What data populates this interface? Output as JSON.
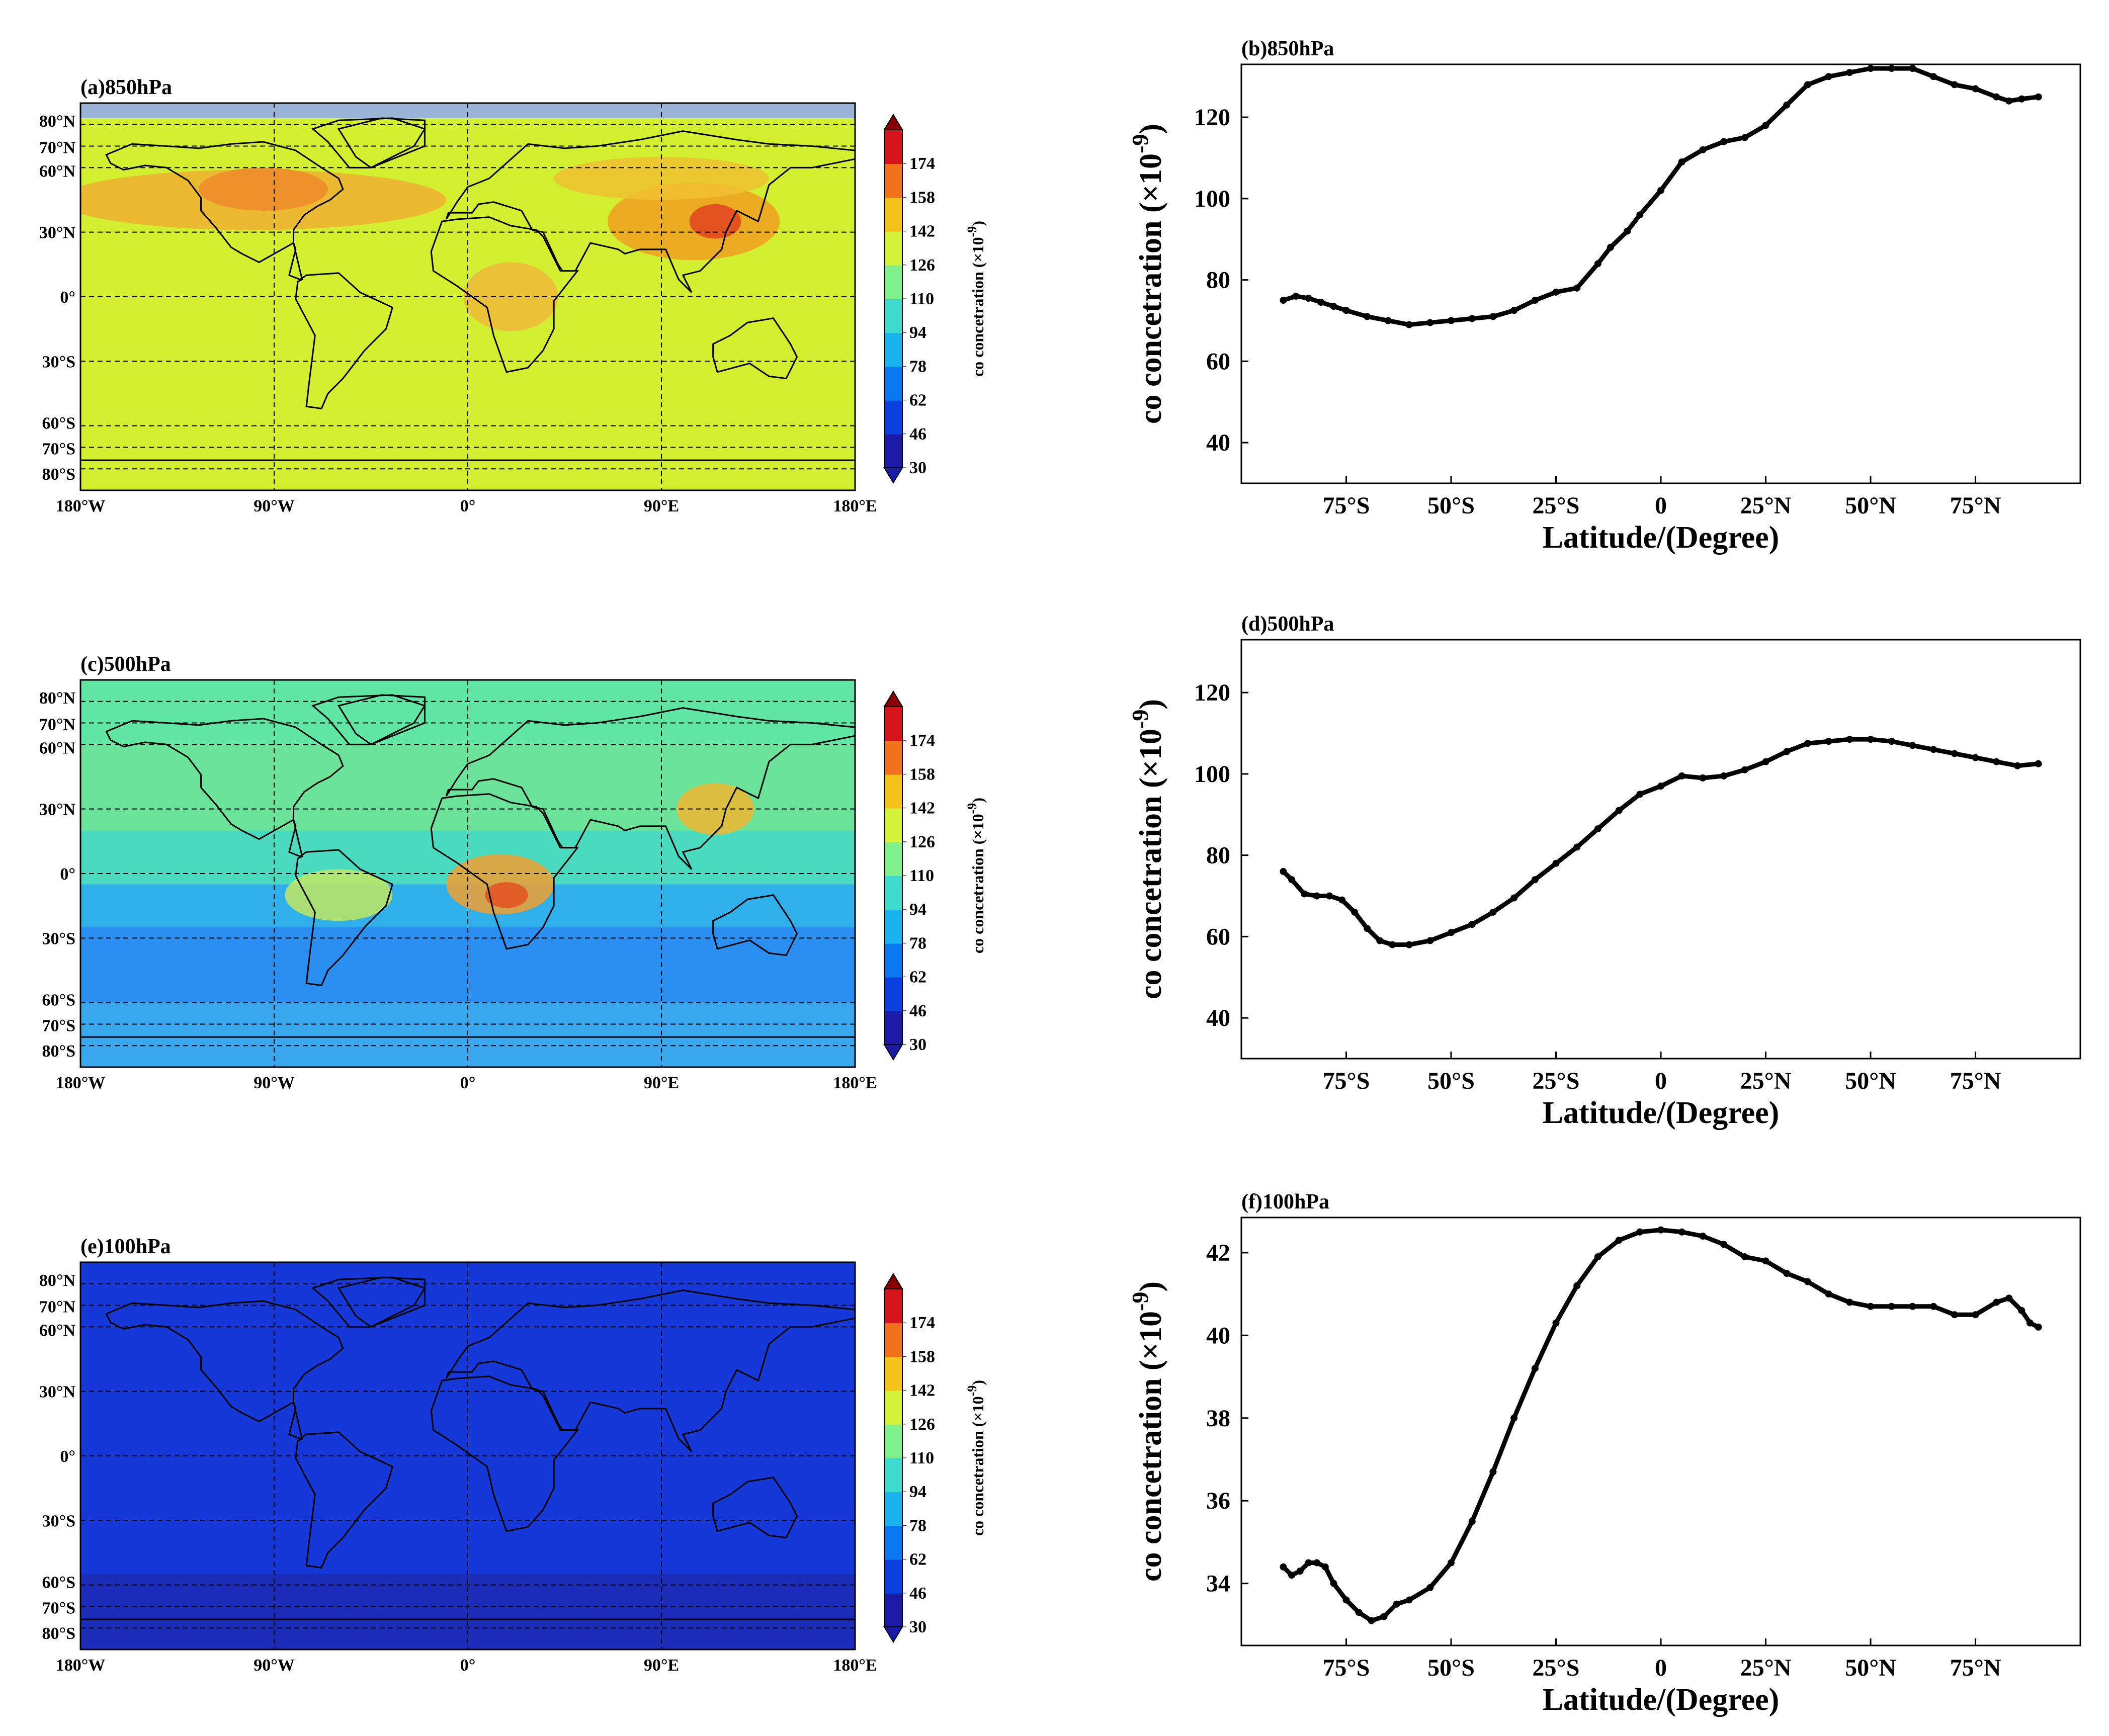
{
  "figure": {
    "colorbar_label": "co concetration (×10",
    "colorbar_exponent": "-9",
    "colorbar_suffix": ")",
    "colorbar_ticks": [
      "30",
      "46",
      "62",
      "78",
      "94",
      "110",
      "126",
      "142",
      "158",
      "174"
    ],
    "colors": {
      "cb_0": "#1a1aa6",
      "cb_1": "#0a3fe0",
      "cb_2": "#0a78f0",
      "cb_3": "#1ab4ef",
      "cb_4": "#3ddad0",
      "cb_5": "#7ff08a",
      "cb_6": "#d4f23a",
      "cb_7": "#f5c21a",
      "cb_8": "#f0721a",
      "cb_9": "#d4141a",
      "cb_10": "#8a0000",
      "ocean_cap": "#9ab4d8",
      "field_850": "#d2f030",
      "field_500_north": "#5ee6a2",
      "field_500_mid": "#3fd6c6",
      "field_500_south": "#2fb0ea",
      "field_100": "#1638d8"
    }
  },
  "maps": [
    {
      "id": "a",
      "title": "(a)850hPa",
      "lat_ticks": [
        "80°N",
        "70°N",
        "60°N",
        "30°N",
        "0°",
        "30°S",
        "60°S",
        "70°S",
        "80°S"
      ],
      "lon_ticks": [
        "180°W",
        "90°W",
        "0°",
        "90°E",
        "180°E"
      ]
    },
    {
      "id": "c",
      "title": "(c)500hPa",
      "lat_ticks": [
        "80°N",
        "70°N",
        "60°N",
        "30°N",
        "0°",
        "30°S",
        "60°S",
        "70°S",
        "80°S"
      ],
      "lon_ticks": [
        "180°W",
        "90°W",
        "0°",
        "90°E",
        "180°E"
      ]
    },
    {
      "id": "e",
      "title": "(e)100hPa",
      "lat_ticks": [
        "80°N",
        "70°N",
        "60°N",
        "30°N",
        "0°",
        "30°S",
        "60°S",
        "70°S",
        "80°S"
      ],
      "lon_ticks": [
        "180°W",
        "90°W",
        "0°",
        "90°E",
        "180°E"
      ]
    }
  ],
  "chart_data": [
    {
      "type": "line",
      "title": "(b)850hPa",
      "xlabel": "Latitude/(Degree)",
      "ylabel": "co concetration (×10",
      "ylabel_exponent": "-9",
      "ylabel_suffix": ")",
      "xlim": [
        -100,
        100
      ],
      "ylim": [
        30,
        133
      ],
      "xticks": [
        -75,
        -50,
        -25,
        0,
        25,
        50,
        75
      ],
      "xtick_labels": [
        "75°S",
        "50°S",
        "25°S",
        "0",
        "25°N",
        "50°N",
        "75°N"
      ],
      "yticks": [
        40,
        60,
        80,
        100,
        120
      ],
      "ytick_labels": [
        "40",
        "60",
        "80",
        "100",
        "120"
      ],
      "series": [
        {
          "name": "850hPa",
          "x": [
            -90,
            -87,
            -84,
            -81,
            -78,
            -75,
            -70,
            -65,
            -60,
            -55,
            -50,
            -45,
            -40,
            -35,
            -30,
            -25,
            -20,
            -15,
            -12,
            -8,
            -5,
            0,
            5,
            10,
            15,
            20,
            25,
            30,
            35,
            40,
            45,
            50,
            55,
            60,
            65,
            70,
            75,
            80,
            83,
            86,
            90
          ],
          "y": [
            75,
            76,
            75.5,
            74.5,
            73.5,
            72.5,
            71,
            70,
            69,
            69.5,
            70,
            70.5,
            71,
            72.5,
            75,
            77,
            78,
            84,
            88,
            92,
            96,
            102,
            109,
            112,
            114,
            115,
            118,
            123,
            128,
            130,
            131,
            132,
            132,
            132,
            130,
            128,
            127,
            125,
            124,
            124.5,
            125
          ]
        }
      ]
    },
    {
      "type": "line",
      "title": "(d)500hPa",
      "xlabel": "Latitude/(Degree)",
      "ylabel": "co concetration (×10",
      "ylabel_exponent": "-9",
      "ylabel_suffix": ")",
      "xlim": [
        -100,
        100
      ],
      "ylim": [
        30,
        133
      ],
      "xticks": [
        -75,
        -50,
        -25,
        0,
        25,
        50,
        75
      ],
      "xtick_labels": [
        "75°S",
        "50°S",
        "25°S",
        "0",
        "25°N",
        "50°N",
        "75°N"
      ],
      "yticks": [
        40,
        60,
        80,
        100,
        120
      ],
      "ytick_labels": [
        "40",
        "60",
        "80",
        "100",
        "120"
      ],
      "series": [
        {
          "name": "500hPa",
          "x": [
            -90,
            -88,
            -85,
            -82,
            -79,
            -76,
            -73,
            -70,
            -67,
            -64,
            -60,
            -55,
            -50,
            -45,
            -40,
            -35,
            -30,
            -25,
            -20,
            -15,
            -10,
            -5,
            0,
            5,
            10,
            15,
            20,
            25,
            30,
            35,
            40,
            45,
            50,
            55,
            60,
            65,
            70,
            75,
            80,
            85,
            90
          ],
          "y": [
            76,
            74,
            70.5,
            70,
            70,
            69,
            66,
            62,
            59,
            58,
            58,
            59,
            61,
            63,
            66,
            69.5,
            74,
            78,
            82,
            86.5,
            91,
            95,
            97,
            99.5,
            99,
            99.5,
            101,
            103,
            105.5,
            107.5,
            108,
            108.5,
            108.5,
            108,
            107,
            106,
            105,
            104,
            103,
            102,
            102.5
          ]
        }
      ]
    },
    {
      "type": "line",
      "title": "(f)100hPa",
      "xlabel": "Latitude/(Degree)",
      "ylabel": "co concetration (×10",
      "ylabel_exponent": "-9",
      "ylabel_suffix": ")",
      "xlim": [
        -100,
        100
      ],
      "ylim": [
        32.5,
        42.85
      ],
      "xticks": [
        -75,
        -50,
        -25,
        0,
        25,
        50,
        75
      ],
      "xtick_labels": [
        "75°S",
        "50°S",
        "25°S",
        "0",
        "25°N",
        "50°N",
        "75°N"
      ],
      "yticks": [
        34,
        36,
        38,
        40,
        42
      ],
      "ytick_labels": [
        "34",
        "36",
        "38",
        "40",
        "42"
      ],
      "series": [
        {
          "name": "100hPa",
          "x": [
            -90,
            -88,
            -86,
            -84,
            -82,
            -80,
            -78,
            -75,
            -72,
            -69,
            -66,
            -63,
            -60,
            -55,
            -50,
            -45,
            -40,
            -35,
            -30,
            -25,
            -20,
            -15,
            -10,
            -5,
            0,
            5,
            10,
            15,
            20,
            25,
            30,
            35,
            40,
            45,
            50,
            55,
            60,
            65,
            70,
            75,
            80,
            83,
            86,
            88,
            90
          ],
          "y": [
            34.4,
            34.2,
            34.3,
            34.5,
            34.5,
            34.4,
            34.0,
            33.6,
            33.3,
            33.1,
            33.2,
            33.5,
            33.6,
            33.9,
            34.5,
            35.5,
            36.7,
            38.0,
            39.2,
            40.3,
            41.2,
            41.9,
            42.3,
            42.5,
            42.55,
            42.5,
            42.4,
            42.2,
            41.9,
            41.8,
            41.5,
            41.3,
            41.0,
            40.8,
            40.7,
            40.7,
            40.7,
            40.7,
            40.5,
            40.5,
            40.8,
            40.9,
            40.6,
            40.3,
            40.2
          ]
        }
      ]
    }
  ]
}
